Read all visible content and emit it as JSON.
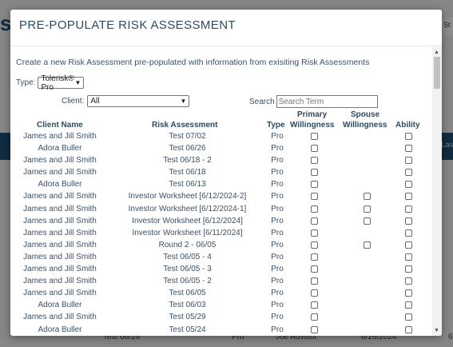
{
  "modal": {
    "title": "PRE-POPULATE RISK ASSESSMENT",
    "intro": "Create a new Risk Assessment pre-populated with information from exisiting Risk Assessments",
    "type_label": "Type:",
    "type_value": "Tolerisk® Pro",
    "client_label": "Client:",
    "client_value": "All",
    "search_label": "Search",
    "search_placeholder": "Search Term"
  },
  "table": {
    "group_headers": {
      "primary": "Primary",
      "spouse": "Spouse"
    },
    "headers": {
      "client": "Client Name",
      "risk_assessment": "Risk Assessment",
      "type": "Type",
      "primary_willingness": "Willingness",
      "spouse_willingness": "Willingness",
      "ability": "Ability"
    },
    "rows": [
      {
        "client": "James and Jill Smith",
        "ra": "Test 07/02",
        "type": "Pro",
        "spouse": false
      },
      {
        "client": "Adora Buller",
        "ra": "Test 06/26",
        "type": "Pro",
        "spouse": false
      },
      {
        "client": "James and Jill Smith",
        "ra": "Test 06/18 - 2",
        "type": "Pro",
        "spouse": false
      },
      {
        "client": "James and Jill Smith",
        "ra": "Test 06/18",
        "type": "Pro",
        "spouse": false
      },
      {
        "client": "Adora Buller",
        "ra": "Test 06/13",
        "type": "Pro",
        "spouse": false
      },
      {
        "client": "James and Jill Smith",
        "ra": "Investor Worksheet [6/12/2024-2]",
        "type": "Pro",
        "spouse": true
      },
      {
        "client": "James and Jill Smith",
        "ra": "Investor Worksheet [6/12/2024-1]",
        "type": "Pro",
        "spouse": true
      },
      {
        "client": "James and Jill Smith",
        "ra": "Investor Worksheet [6/12/2024]",
        "type": "Pro",
        "spouse": true
      },
      {
        "client": "James and Jill Smith",
        "ra": "Investor Worksheet [6/11/2024]",
        "type": "Pro",
        "spouse": false
      },
      {
        "client": "James and Jill Smith",
        "ra": "Round 2 - 06/05",
        "type": "Pro",
        "spouse": true
      },
      {
        "client": "James and Jill Smith",
        "ra": "Test 06/05 - 4",
        "type": "Pro",
        "spouse": false
      },
      {
        "client": "James and Jill Smith",
        "ra": "Test 06/05 - 3",
        "type": "Pro",
        "spouse": false
      },
      {
        "client": "James and Jill Smith",
        "ra": "Test 06/05 - 2",
        "type": "Pro",
        "spouse": false
      },
      {
        "client": "James and Jill Smith",
        "ra": "Test 06/05",
        "type": "Pro",
        "spouse": false
      },
      {
        "client": "Adora Buller",
        "ra": "Test 06/03",
        "type": "Pro",
        "spouse": false
      },
      {
        "client": "James and Jill Smith",
        "ra": "Test 05/29",
        "type": "Pro",
        "spouse": false
      },
      {
        "client": "Adora Buller",
        "ra": "Test 05/24",
        "type": "Pro",
        "spouse": false
      }
    ]
  },
  "background": {
    "logo_fragment": "s",
    "corner_top": "St",
    "corner_bar": "Las",
    "bottom_ra": "Test 06/26",
    "bottom_type": "Pro",
    "bottom_advisor": "Joe Advisor",
    "bottom_date": "6/26/2024",
    "bottom_corner": "6"
  },
  "colors": {
    "accent": "#1f4f76",
    "text": "#3b5166"
  }
}
